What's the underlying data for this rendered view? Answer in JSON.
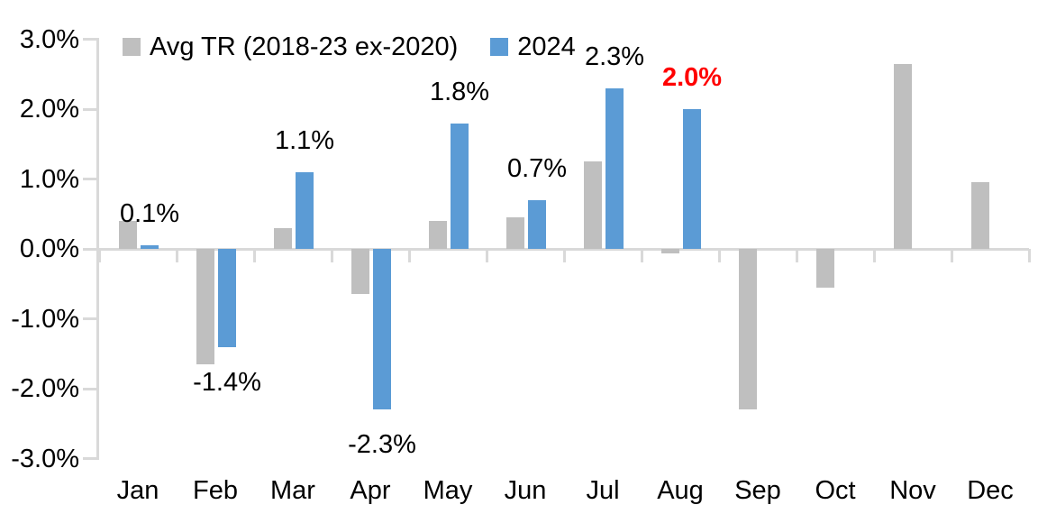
{
  "chart_data": {
    "type": "bar",
    "title": "",
    "categories": [
      "Jan",
      "Feb",
      "Mar",
      "Apr",
      "May",
      "Jun",
      "Jul",
      "Aug",
      "Sep",
      "Oct",
      "Nov",
      "Dec"
    ],
    "series": [
      {
        "name": "Avg TR (2018-23 ex-2020)",
        "color": "#BFBFBF",
        "values": [
          0.4,
          -1.65,
          0.3,
          -0.65,
          0.4,
          0.45,
          1.25,
          -0.07,
          -2.3,
          -0.55,
          2.65,
          0.95
        ]
      },
      {
        "name": "2024",
        "color": "#5B9BD5",
        "values": [
          0.05,
          -1.4,
          1.1,
          -2.3,
          1.8,
          0.7,
          2.3,
          2.0,
          null,
          null,
          null,
          null
        ]
      }
    ],
    "data_labels": [
      {
        "index": 0,
        "text": "0.1%",
        "color": "#000000",
        "bold": false
      },
      {
        "index": 1,
        "text": "-1.4%",
        "color": "#000000",
        "bold": false
      },
      {
        "index": 2,
        "text": "1.1%",
        "color": "#000000",
        "bold": false
      },
      {
        "index": 3,
        "text": "-2.3%",
        "color": "#000000",
        "bold": false
      },
      {
        "index": 4,
        "text": "1.8%",
        "color": "#000000",
        "bold": false
      },
      {
        "index": 5,
        "text": "0.7%",
        "color": "#000000",
        "bold": false
      },
      {
        "index": 6,
        "text": "2.3%",
        "color": "#000000",
        "bold": false
      },
      {
        "index": 7,
        "text": "2.0%",
        "color": "#FF0000",
        "bold": true
      }
    ],
    "y_axis": {
      "ticks": [
        "3.0%",
        "2.0%",
        "1.0%",
        "0.0%",
        "-1.0%",
        "-2.0%",
        "-3.0%"
      ],
      "min": -3.0,
      "max": 3.0,
      "unit": "%"
    },
    "xlabel": "",
    "ylabel": "",
    "grid": false,
    "legend_position": "top-left",
    "axis_color": "#D9D9D9",
    "background_color": "#FFFFFF",
    "text_color": "#000000",
    "highlight_color": "#FF0000"
  }
}
